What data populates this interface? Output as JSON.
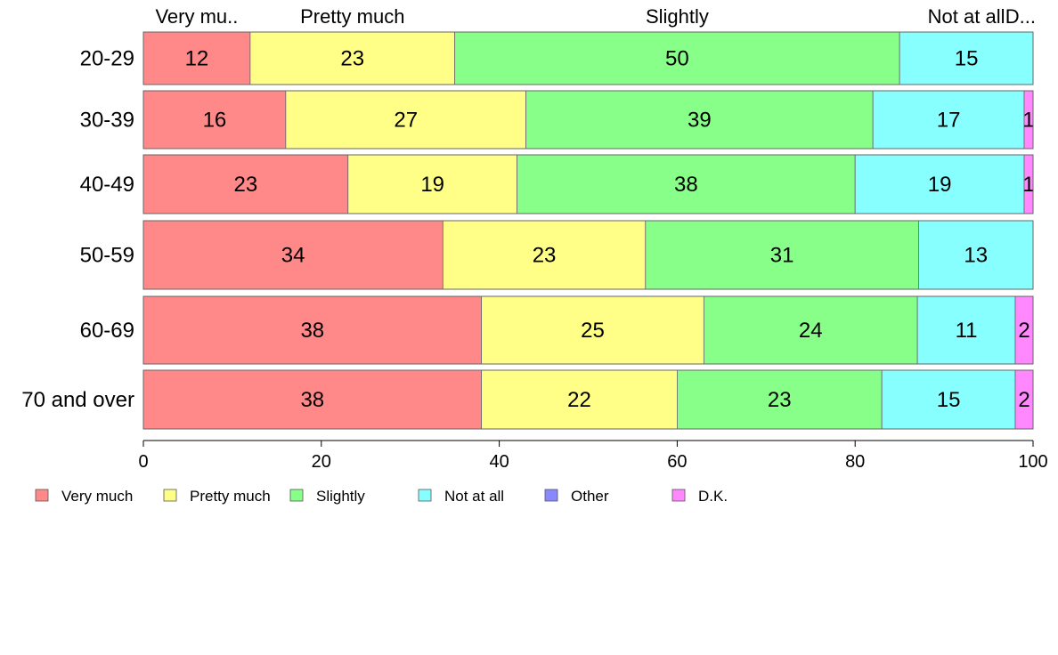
{
  "chart_data": {
    "type": "bar",
    "orientation": "horizontal",
    "stacked": true,
    "categories": [
      "20-29",
      "30-39",
      "40-49",
      "50-59",
      "60-69",
      "70 and over"
    ],
    "series": [
      {
        "name": "Very much",
        "color": "#ff8888",
        "values": [
          12,
          16,
          23,
          34,
          38,
          38
        ]
      },
      {
        "name": "Pretty much",
        "color": "#ffff88",
        "values": [
          23,
          27,
          19,
          23,
          25,
          22
        ]
      },
      {
        "name": "Slightly",
        "color": "#88ff88",
        "values": [
          50,
          39,
          38,
          31,
          24,
          23
        ]
      },
      {
        "name": "Not at all",
        "color": "#88ffff",
        "values": [
          15,
          17,
          19,
          13,
          11,
          15
        ]
      },
      {
        "name": "Other",
        "color": "#8888ff",
        "values": [
          0,
          0,
          0,
          0,
          0,
          0
        ]
      },
      {
        "name": "D.K.",
        "color": "#ff88ff",
        "values": [
          0,
          1,
          1,
          0,
          2,
          2
        ]
      }
    ],
    "segment_labels": [
      [
        "12",
        "23",
        "50",
        "15",
        "",
        ""
      ],
      [
        "16",
        "27",
        "39",
        "17",
        "",
        "1"
      ],
      [
        "23",
        "19",
        "38",
        "19",
        "",
        "1"
      ],
      [
        "34",
        "23",
        "31",
        "13",
        "",
        ""
      ],
      [
        "38",
        "25",
        "24",
        "11",
        "",
        "2"
      ],
      [
        "38",
        "22",
        "23",
        "15",
        "",
        "2"
      ]
    ],
    "top_labels": [
      "Very mu..",
      "Pretty much",
      "Slightly",
      "Not at all",
      "",
      "D..."
    ],
    "xlim": [
      0,
      100
    ],
    "xticks": [
      0,
      20,
      40,
      60,
      80,
      100
    ],
    "legend_position": "bottom",
    "grid": false
  }
}
